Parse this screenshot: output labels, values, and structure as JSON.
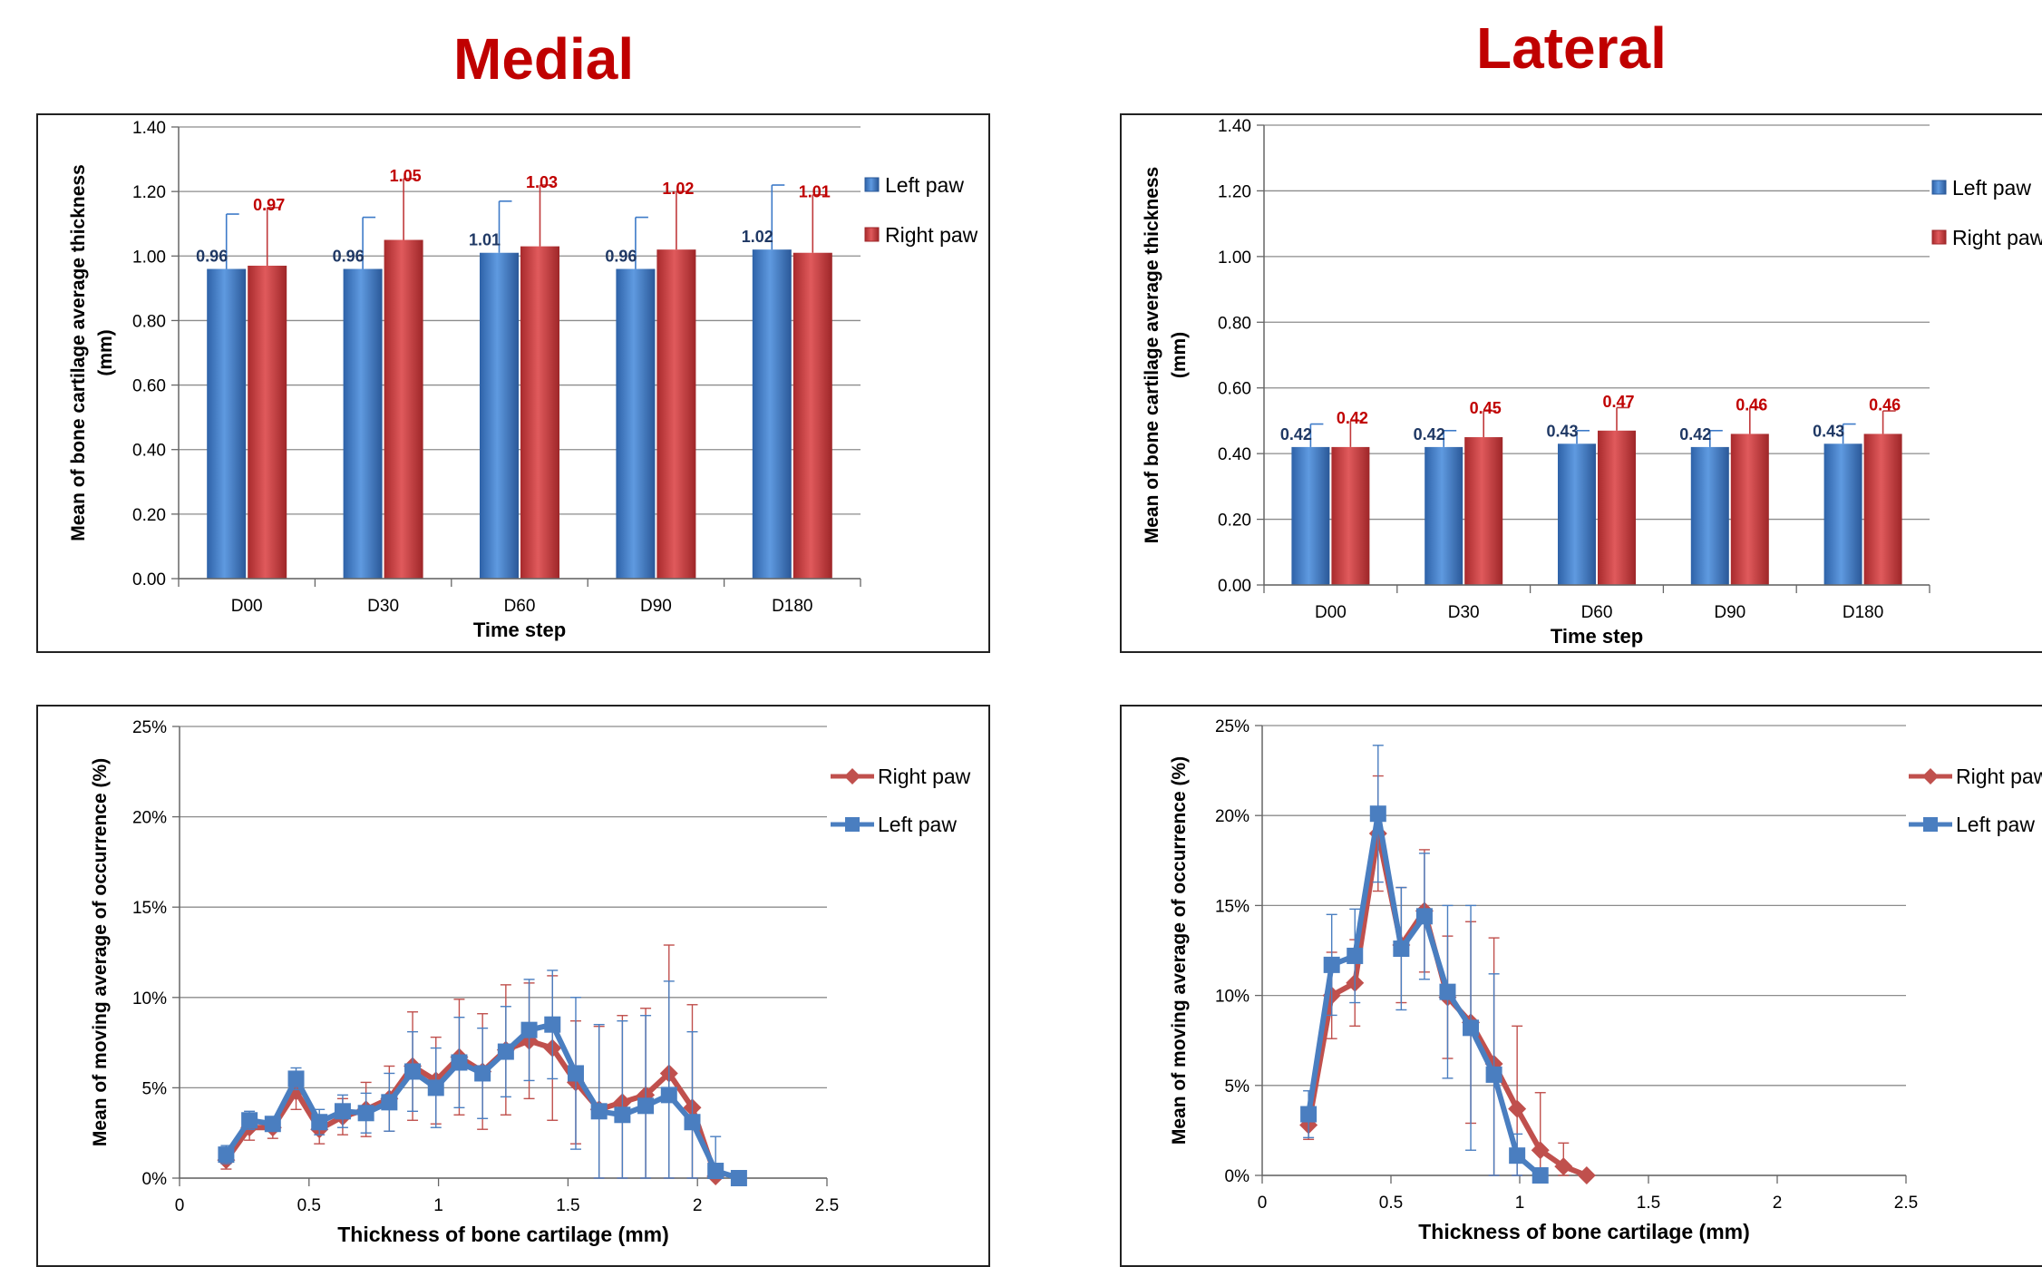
{
  "titles": {
    "medial": "Medial",
    "lateral": "Lateral"
  },
  "colors": {
    "left": "#3d7ac8",
    "left_label": "#1f3864",
    "right": "#c0393b",
    "right_label": "#c00000",
    "line_left": "#4a7ec0",
    "line_right": "#c0504d"
  },
  "chart_data": [
    {
      "type": "bar",
      "categories": [
        "D00",
        "D30",
        "D60",
        "D90",
        "D180"
      ],
      "series": [
        {
          "name": "Left paw",
          "values": [
            0.96,
            0.96,
            1.01,
            0.96,
            1.02
          ],
          "labels": [
            "0.96",
            "0.96",
            "1.01",
            "0.96",
            "1.02"
          ],
          "err": [
            0.17,
            0.16,
            0.16,
            0.16,
            0.2
          ]
        },
        {
          "name": "Right paw",
          "values": [
            0.97,
            1.05,
            1.03,
            1.02,
            1.01
          ],
          "labels": [
            "0.97",
            "1.05",
            "1.03",
            "1.02",
            "1.01"
          ],
          "err": [
            0.18,
            0.19,
            0.19,
            0.18,
            0.18
          ]
        }
      ],
      "ylim": [
        0,
        1.4
      ],
      "yticks": [
        0,
        0.2,
        0.4,
        0.6,
        0.8,
        1.0,
        1.2,
        1.4
      ],
      "yticklabels": [
        "0.00",
        "0.20",
        "0.40",
        "0.60",
        "0.80",
        "1.00",
        "1.20",
        "1.40"
      ],
      "xlabel": "Time step",
      "ylabel": [
        "Mean of bone cartilage average thickness",
        "(mm)"
      ],
      "legend": "right",
      "grid": true
    },
    {
      "type": "bar",
      "categories": [
        "D00",
        "D30",
        "D60",
        "D90",
        "D180"
      ],
      "series": [
        {
          "name": "Left paw",
          "values": [
            0.42,
            0.42,
            0.43,
            0.42,
            0.43
          ],
          "labels": [
            "0.42",
            "0.42",
            "0.43",
            "0.42",
            "0.43"
          ],
          "err": [
            0.07,
            0.05,
            0.04,
            0.05,
            0.06
          ]
        },
        {
          "name": "Right paw",
          "values": [
            0.42,
            0.45,
            0.47,
            0.46,
            0.46
          ],
          "labels": [
            "0.42",
            "0.45",
            "0.47",
            "0.46",
            "0.46"
          ],
          "err": [
            0.08,
            0.08,
            0.07,
            0.08,
            0.07
          ]
        }
      ],
      "ylim": [
        0,
        1.4
      ],
      "yticks": [
        0,
        0.2,
        0.4,
        0.6,
        0.8,
        1.0,
        1.2,
        1.4
      ],
      "yticklabels": [
        "0.00",
        "0.20",
        "0.40",
        "0.60",
        "0.80",
        "1.00",
        "1.20",
        "1.40"
      ],
      "xlabel": "Time step",
      "ylabel": [
        "Mean of bone cartilage average thickness",
        "(mm)"
      ],
      "legend": "right",
      "grid": true
    },
    {
      "type": "line",
      "series": [
        {
          "name": "Right paw",
          "x": [
            0.18,
            0.27,
            0.36,
            0.45,
            0.54,
            0.63,
            0.72,
            0.81,
            0.9,
            0.99,
            1.08,
            1.17,
            1.26,
            1.35,
            1.44,
            1.53,
            1.62,
            1.71,
            1.8,
            1.89,
            1.98,
            2.07
          ],
          "y": [
            1.0,
            2.8,
            2.8,
            4.8,
            2.7,
            3.4,
            3.8,
            4.4,
            6.2,
            5.4,
            6.7,
            5.9,
            7.1,
            7.6,
            7.2,
            5.3,
            3.8,
            4.2,
            4.6,
            5.8,
            3.9,
            0.1
          ],
          "err": [
            0.5,
            0.7,
            0.6,
            1.0,
            0.8,
            1.0,
            1.5,
            1.8,
            3.0,
            2.4,
            3.2,
            3.2,
            3.6,
            3.2,
            4.0,
            3.4,
            4.6,
            4.8,
            4.8,
            7.1,
            5.7,
            0.3
          ]
        },
        {
          "name": "Left paw",
          "x": [
            0.18,
            0.27,
            0.36,
            0.45,
            0.54,
            0.63,
            0.72,
            0.81,
            0.9,
            0.99,
            1.08,
            1.17,
            1.26,
            1.35,
            1.44,
            1.53,
            1.62,
            1.71,
            1.8,
            1.89,
            1.98,
            2.07,
            2.16
          ],
          "y": [
            1.3,
            3.2,
            3.0,
            5.5,
            3.1,
            3.7,
            3.6,
            4.2,
            5.9,
            5.0,
            6.4,
            5.8,
            7.0,
            8.2,
            8.5,
            5.8,
            3.7,
            3.5,
            4.0,
            4.6,
            3.1,
            0.4,
            0.0
          ],
          "err": [
            0.5,
            0.5,
            0.4,
            0.6,
            0.7,
            0.9,
            1.1,
            1.6,
            2.2,
            2.2,
            2.5,
            2.5,
            2.5,
            2.8,
            3.0,
            4.2,
            4.8,
            5.2,
            5.0,
            6.3,
            5.0,
            1.9,
            0.0
          ]
        }
      ],
      "xlim": [
        0,
        2.5
      ],
      "xticks": [
        0,
        0.5,
        1,
        1.5,
        2,
        2.5
      ],
      "xticklabels": [
        "0",
        "0.5",
        "1",
        "1.5",
        "2",
        "2.5"
      ],
      "ylim": [
        0,
        25
      ],
      "yticks": [
        0,
        5,
        10,
        15,
        20,
        25
      ],
      "yticklabels": [
        "0%",
        "5%",
        "10%",
        "15%",
        "20%",
        "25%"
      ],
      "xlabel": "Thickness of bone cartilage (mm)",
      "ylabel": "Mean of moving average of occurrence (%)",
      "legend": "top-right",
      "grid": true
    },
    {
      "type": "line",
      "series": [
        {
          "name": "Right paw",
          "x": [
            0.18,
            0.27,
            0.36,
            0.45,
            0.54,
            0.63,
            0.72,
            0.81,
            0.9,
            0.99,
            1.08,
            1.17,
            1.26
          ],
          "y": [
            2.8,
            10.0,
            10.7,
            19.0,
            12.8,
            14.7,
            9.9,
            8.5,
            6.2,
            3.7,
            1.4,
            0.5,
            0.0
          ],
          "err": [
            0.8,
            2.4,
            2.4,
            3.2,
            3.2,
            3.4,
            3.4,
            5.6,
            7.0,
            4.6,
            3.2,
            1.3,
            0.1
          ]
        },
        {
          "name": "Left paw",
          "x": [
            0.18,
            0.27,
            0.36,
            0.45,
            0.54,
            0.63,
            0.72,
            0.81,
            0.9,
            0.99,
            1.08
          ],
          "y": [
            3.4,
            11.7,
            12.2,
            20.1,
            12.6,
            14.4,
            10.2,
            8.2,
            5.6,
            1.1,
            0.0
          ],
          "err": [
            1.3,
            2.8,
            2.6,
            3.8,
            3.4,
            3.5,
            4.8,
            6.8,
            5.6,
            1.2,
            0.0
          ]
        }
      ],
      "xlim": [
        0,
        2.5
      ],
      "xticks": [
        0,
        0.5,
        1,
        1.5,
        2,
        2.5
      ],
      "xticklabels": [
        "0",
        "0.5",
        "1",
        "1.5",
        "2",
        "2.5"
      ],
      "ylim": [
        0,
        25
      ],
      "yticks": [
        0,
        5,
        10,
        15,
        20,
        25
      ],
      "yticklabels": [
        "0%",
        "5%",
        "10%",
        "15%",
        "20%",
        "25%"
      ],
      "xlabel": "Thickness of bone cartilage (mm)",
      "ylabel": "Mean of moving average of occurrence (%)",
      "legend": "top-right",
      "grid": true
    }
  ]
}
